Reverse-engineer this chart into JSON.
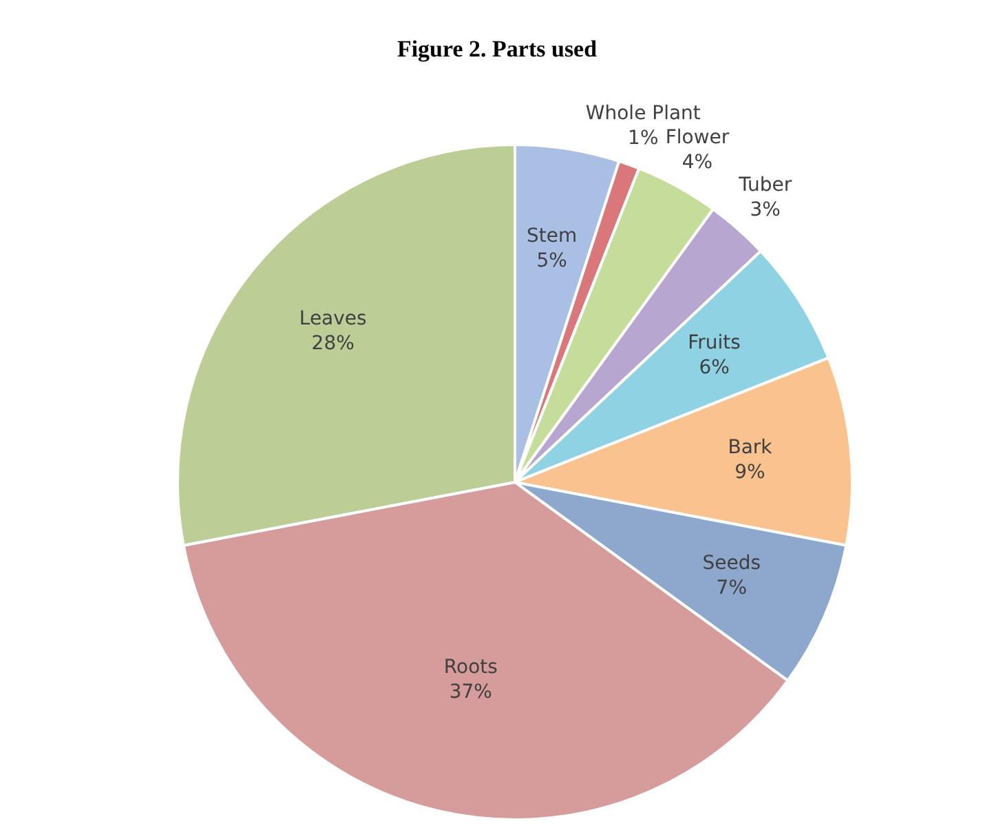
{
  "chart_data": {
    "type": "pie",
    "title": "Figure 2. Parts used",
    "categories": [
      "Stem",
      "Whole Plant",
      "Flower",
      "Tuber",
      "Fruits",
      "Bark",
      "Seeds",
      "Roots",
      "Leaves"
    ],
    "values": [
      5,
      1,
      4,
      3,
      6,
      9,
      7,
      37,
      28
    ],
    "value_labels": [
      "5%",
      "1%",
      "4%",
      "3%",
      "6%",
      "9%",
      "7%",
      "37%",
      "28%"
    ],
    "colors": [
      "#a9c0e4",
      "#d9777a",
      "#c6dc9a",
      "#b7a6cf",
      "#8fd2e3",
      "#f9c28f",
      "#8ea8cd",
      "#d59c9b",
      "#bccd95"
    ]
  }
}
